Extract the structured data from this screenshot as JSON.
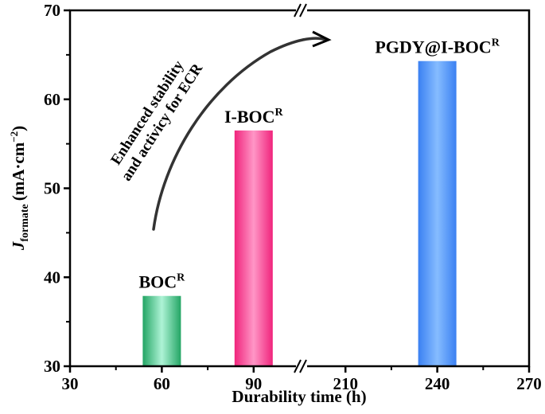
{
  "chart_data": {
    "type": "bar",
    "title": "",
    "xlabel": "Durability time (h)",
    "ylabel_main": "J",
    "ylabel_sub": "formate",
    "ylabel_unit": "(mA·cm",
    "ylabel_exp": "−2",
    "ylabel_close": ")",
    "x_ticks": [
      "30",
      "60",
      "90",
      "210",
      "240",
      "270"
    ],
    "x_axis_break": "between 90 and 210",
    "ylim": [
      30,
      70
    ],
    "y_ticks": [
      "30",
      "40",
      "50",
      "60",
      "70"
    ],
    "grid": false,
    "bars": [
      {
        "x": "60",
        "value": 37.9,
        "label": "BOC",
        "label_sup": "R",
        "color_edge": "#23a564",
        "color_center": "#aef3d6"
      },
      {
        "x": "90",
        "value": 56.5,
        "label": "I-BOC",
        "label_sup": "R",
        "color_edge": "#f0247c",
        "color_center": "#ff96c6"
      },
      {
        "x": "240",
        "value": 64.3,
        "label": "PGDY@I-BOC",
        "label_sup": "R",
        "color_edge": "#3a80f2",
        "color_center": "#86bcff"
      }
    ],
    "annotation": {
      "line1": "Enhanced stability",
      "line2": "and activicy for ECR",
      "arrow": "curved arrow from BOC toward PGDY@I-BOC"
    }
  }
}
